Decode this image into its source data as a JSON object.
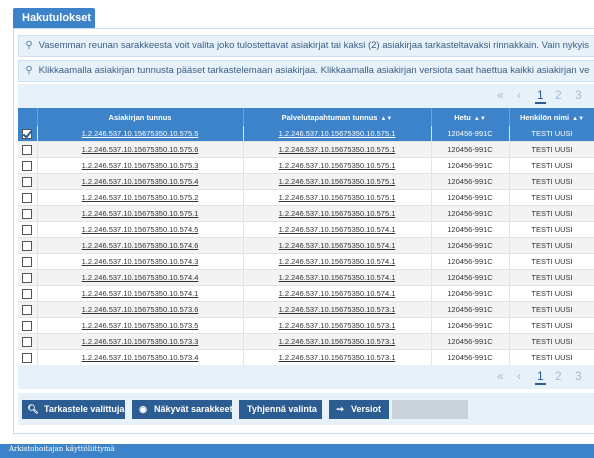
{
  "tab": {
    "label": "Hakutulokset"
  },
  "info": [
    "Vasemman reunan sarakkeesta voit valita joko tulostettavat asiakirjat tai kaksi (2) asiakirjaa tarkasteltavaksi rinnakkain. Vain nykyis",
    "Klikkaamalla asiakirjan tunnusta pääset tarkastelemaan asiakirjaa. Klikkaamalla asiakirjan versiota saat haettua kaikki asiakirjan ve"
  ],
  "pager": {
    "first": "«",
    "prev": "‹",
    "pages": [
      "1",
      "2",
      "3"
    ],
    "current": "1"
  },
  "table": {
    "headers": [
      "Asiakirjan tunnus",
      "Palvelutapahtuman tunnus",
      "Hetu",
      "Henkilön nimi"
    ],
    "rows": [
      {
        "doc": "1.2.246.537.10.15675350.10.575.5",
        "event": "1.2.246.537.10.15675350.10.575.1",
        "hetu": "120456-991C",
        "name": "TESTI UUSI",
        "checked": true
      },
      {
        "doc": "1.2.246.537.10.15675350.10.575.6",
        "event": "1.2.246.537.10.15675350.10.575.1",
        "hetu": "120456-991C",
        "name": "TESTI UUSI",
        "checked": false
      },
      {
        "doc": "1.2.246.537.10.15675350.10.575.3",
        "event": "1.2.246.537.10.15675350.10.575.1",
        "hetu": "120456-991C",
        "name": "TESTI UUSI",
        "checked": false
      },
      {
        "doc": "1.2.246.537.10.15675350.10.575.4",
        "event": "1.2.246.537.10.15675350.10.575.1",
        "hetu": "120456-991C",
        "name": "TESTI UUSI",
        "checked": false
      },
      {
        "doc": "1.2.246.537.10.15675350.10.575.2",
        "event": "1.2.246.537.10.15675350.10.575.1",
        "hetu": "120456-991C",
        "name": "TESTI UUSI",
        "checked": false
      },
      {
        "doc": "1.2.246.537.10.15675350.10.575.1",
        "event": "1.2.246.537.10.15675350.10.575.1",
        "hetu": "120456-991C",
        "name": "TESTI UUSI",
        "checked": false
      },
      {
        "doc": "1.2.246.537.10.15675350.10.574.5",
        "event": "1.2.246.537.10.15675350.10.574.1",
        "hetu": "120456-991C",
        "name": "TESTI UUSI",
        "checked": false
      },
      {
        "doc": "1.2.246.537.10.15675350.10.574.6",
        "event": "1.2.246.537.10.15675350.10.574.1",
        "hetu": "120456-991C",
        "name": "TESTI UUSI",
        "checked": false
      },
      {
        "doc": "1.2.246.537.10.15675350.10.574.3",
        "event": "1.2.246.537.10.15675350.10.574.1",
        "hetu": "120456-991C",
        "name": "TESTI UUSI",
        "checked": false
      },
      {
        "doc": "1.2.246.537.10.15675350.10.574.4",
        "event": "1.2.246.537.10.15675350.10.574.1",
        "hetu": "120456-991C",
        "name": "TESTI UUSI",
        "checked": false
      },
      {
        "doc": "1.2.246.537.10.15675350.10.574.1",
        "event": "1.2.246.537.10.15675350.10.574.1",
        "hetu": "120456-991C",
        "name": "TESTI UUSI",
        "checked": false
      },
      {
        "doc": "1.2.246.537.10.15675350.10.573.6",
        "event": "1.2.246.537.10.15675350.10.573.1",
        "hetu": "120456-991C",
        "name": "TESTI UUSI",
        "checked": false
      },
      {
        "doc": "1.2.246.537.10.15675350.10.573.5",
        "event": "1.2.246.537.10.15675350.10.573.1",
        "hetu": "120456-991C",
        "name": "TESTI UUSI",
        "checked": false
      },
      {
        "doc": "1.2.246.537.10.15675350.10.573.3",
        "event": "1.2.246.537.10.15675350.10.573.1",
        "hetu": "120456-991C",
        "name": "TESTI UUSI",
        "checked": false
      },
      {
        "doc": "1.2.246.537.10.15675350.10.573.4",
        "event": "1.2.246.537.10.15675350.10.573.1",
        "hetu": "120456-991C",
        "name": "TESTI UUSI",
        "checked": false
      }
    ]
  },
  "buttons": {
    "view": "Tarkastele valittuja",
    "columns": "Näkyvät sarakkeet",
    "clear": "Tyhjennä valinta",
    "versions": "Versiot"
  },
  "footer": {
    "text": "Arkistohoitajan käyttöliittymä"
  },
  "colors": {
    "primary": "#3d83c9",
    "button": "#2b5d92",
    "info_bg": "#e7f1fa"
  }
}
